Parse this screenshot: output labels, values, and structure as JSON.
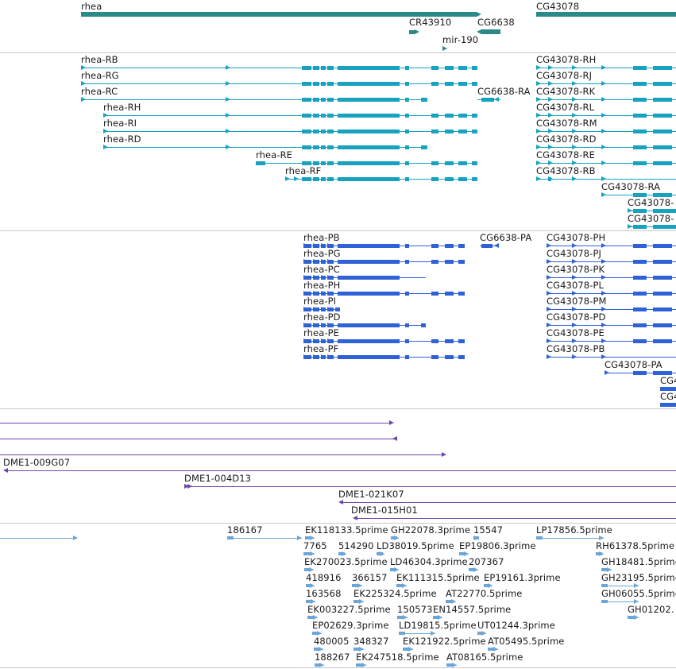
{
  "viewer": {
    "name": "genome-browser-track-view"
  },
  "colors": {
    "gene": "#2a8a8a",
    "transcript": "#17a2c0",
    "protein": "#2f62d8",
    "clone": "#6a48a8",
    "est": "#6aa6d8",
    "separator": "#c8c8c8",
    "label": "#1a1a1a"
  },
  "tracks": {
    "genes": {
      "rhea": "rhea",
      "cr43910": "CR43910",
      "cg6638": "CG6638",
      "mir190": "mir-190",
      "cg43078": "CG43078"
    },
    "transcripts": {
      "rhea_rb": "rhea-RB",
      "rhea_rg": "rhea-RG",
      "rhea_rc": "rhea-RC",
      "rhea_rh": "rhea-RH",
      "rhea_ri": "rhea-RI",
      "rhea_rd": "rhea-RD",
      "rhea_re": "rhea-RE",
      "rhea_rf": "rhea-RF",
      "cg6638_ra": "CG6638-RA",
      "cg43078_rh": "CG43078-RH",
      "cg43078_rj": "CG43078-RJ",
      "cg43078_rk": "CG43078-RK",
      "cg43078_rl": "CG43078-RL",
      "cg43078_rm": "CG43078-RM",
      "cg43078_rd": "CG43078-RD",
      "cg43078_re": "CG43078-RE",
      "cg43078_rb": "CG43078-RB",
      "cg43078_ra": "CG43078-RA",
      "cg43078_c1": "CG43078-",
      "cg43078_c2": "CG43078-"
    },
    "proteins": {
      "rhea_pb": "rhea-PB",
      "rhea_pg": "rhea-PG",
      "rhea_pc": "rhea-PC",
      "rhea_ph": "rhea-PH",
      "rhea_pi": "rhea-PI",
      "rhea_pd": "rhea-PD",
      "rhea_pe": "rhea-PE",
      "rhea_pf": "rhea-PF",
      "cg6638_pa": "CG6638-PA",
      "cg43078_ph": "CG43078-PH",
      "cg43078_pj": "CG43078-PJ",
      "cg43078_pk": "CG43078-PK",
      "cg43078_pl": "CG43078-PL",
      "cg43078_pm": "CG43078-PM",
      "cg43078_pd": "CG43078-PD",
      "cg43078_pe": "CG43078-PE",
      "cg43078_pb": "CG43078-PB",
      "cg43078_pa": "CG43078-PA",
      "cg4_c1": "CG4",
      "cg4_c2": "CG4"
    },
    "clones": {
      "dme1_009g07": "DME1-009G07",
      "dme1_004d13": "DME1-004D13",
      "dme1_021k07": "DME1-021K07",
      "dme1_015h01": "DME1-015H01"
    },
    "ests": {
      "e186167": "186167",
      "ek118133": "EK118133.5prime",
      "gh22078": "GH22078.3prime",
      "e15547": "15547",
      "lp17856": "LP17856.5prime",
      "e7765": "7765",
      "e514290": "514290",
      "ld38019": "LD38019.5prime",
      "ep19806": "EP19806.3prime",
      "rh61378": "RH61378.5prime",
      "ek270023": "EK270023.5prime",
      "ld46304": "LD46304.3prime",
      "e207367": "207367",
      "gh18481": "GH18481.5prime",
      "e418916": "418916",
      "e366157": "366157",
      "ek111315": "EK111315.5prime",
      "ep19161": "EP19161.3prime",
      "gh23195": "GH23195.5prime",
      "e163568": "163568",
      "ek225324": "EK225324.5prime",
      "at22770": "AT22770.5prime",
      "gh06055": "GH06055.5prime",
      "ek003227": "EK003227.5prime",
      "e150573": "150573",
      "en14557": "EN14557.5prime",
      "gh01202": "GH01202.",
      "ep02629": "EP02629.3prime",
      "ld19815": "LD19815.5prime",
      "ut01244": "UT01244.3prime",
      "e480005": "480005",
      "e348327": "348327",
      "ek121922": "EK121922.5prime",
      "at05495": "AT05495.5prime",
      "e188267": "188267",
      "ek247518": "EK247518.5prime",
      "at08165": "AT08165.5prime"
    }
  }
}
